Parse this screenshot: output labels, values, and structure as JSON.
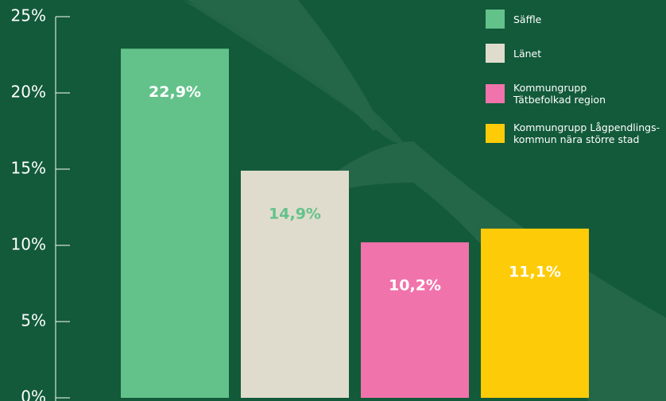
{
  "chart_data": {
    "type": "bar",
    "ylim": [
      0,
      25
    ],
    "yticks": [
      {
        "value": 0,
        "label": "0%"
      },
      {
        "value": 5,
        "label": "5%"
      },
      {
        "value": 10,
        "label": "10%"
      },
      {
        "value": 15,
        "label": "15%"
      },
      {
        "value": 20,
        "label": "20%"
      },
      {
        "value": 25,
        "label": "25%"
      }
    ],
    "series": [
      {
        "name": "Säffle",
        "color": "#63c28a",
        "label_color": "#ffffff",
        "values": [
          22.9
        ],
        "value_labels": [
          "22,9%"
        ]
      },
      {
        "name": "Länet",
        "color": "#dfdccd",
        "label_color": "#63c28a",
        "values": [
          14.9
        ],
        "value_labels": [
          "14,9%"
        ]
      },
      {
        "name": "Kommungrupp\nTätbefolkad region",
        "color": "#f173ab",
        "label_color": "#ffffff",
        "values": [
          10.2
        ],
        "value_labels": [
          "10,2%"
        ]
      },
      {
        "name": "Kommungrupp Lågpendlings-\nkommun nära större stad",
        "color": "#fecb08",
        "label_color": "#ffffff",
        "values": [
          11.1
        ],
        "value_labels": [
          "11,1%"
        ]
      }
    ],
    "legend": "top-right"
  }
}
